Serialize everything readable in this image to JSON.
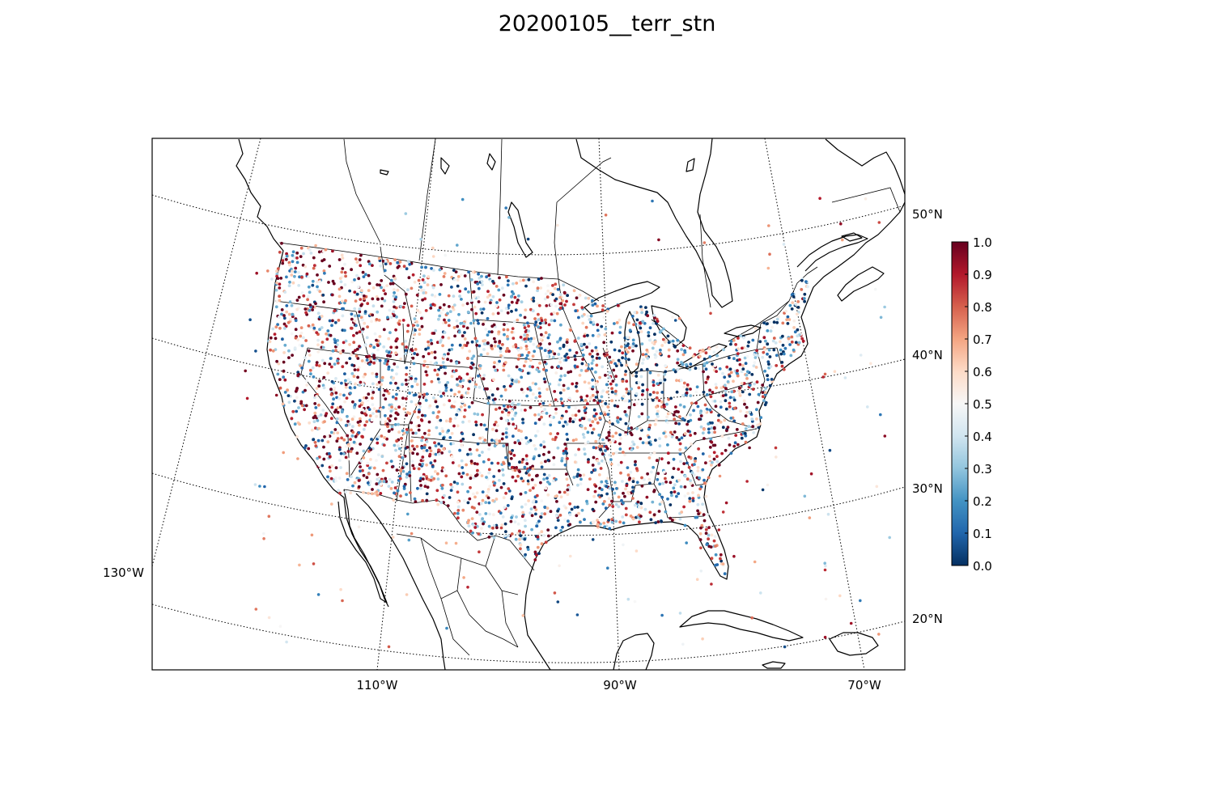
{
  "title": "20200105__terr_stn",
  "map": {
    "projection": "lambert-conformal",
    "region": "CONUS",
    "lon_labels": [
      "110°W",
      "90°W",
      "70°W",
      "130°W"
    ],
    "lat_labels": [
      "50°N",
      "40°N",
      "30°N",
      "20°N"
    ],
    "meridians_deg_w": [
      130,
      110,
      90,
      70
    ],
    "parallels_deg_n": [
      20,
      30,
      40,
      50
    ],
    "grid": "dotted",
    "marker": "small filled circles"
  },
  "colorbar": {
    "cmap": "RdBu_r",
    "vmin": 0.0,
    "vmax": 1.0,
    "ticks": [
      "0.0",
      "0.1",
      "0.2",
      "0.3",
      "0.4",
      "0.5",
      "0.6",
      "0.7",
      "0.8",
      "0.9",
      "1.0"
    ],
    "colors": {
      "low": "#053061",
      "mid": "#f7f7f7",
      "high": "#67001f"
    }
  }
}
